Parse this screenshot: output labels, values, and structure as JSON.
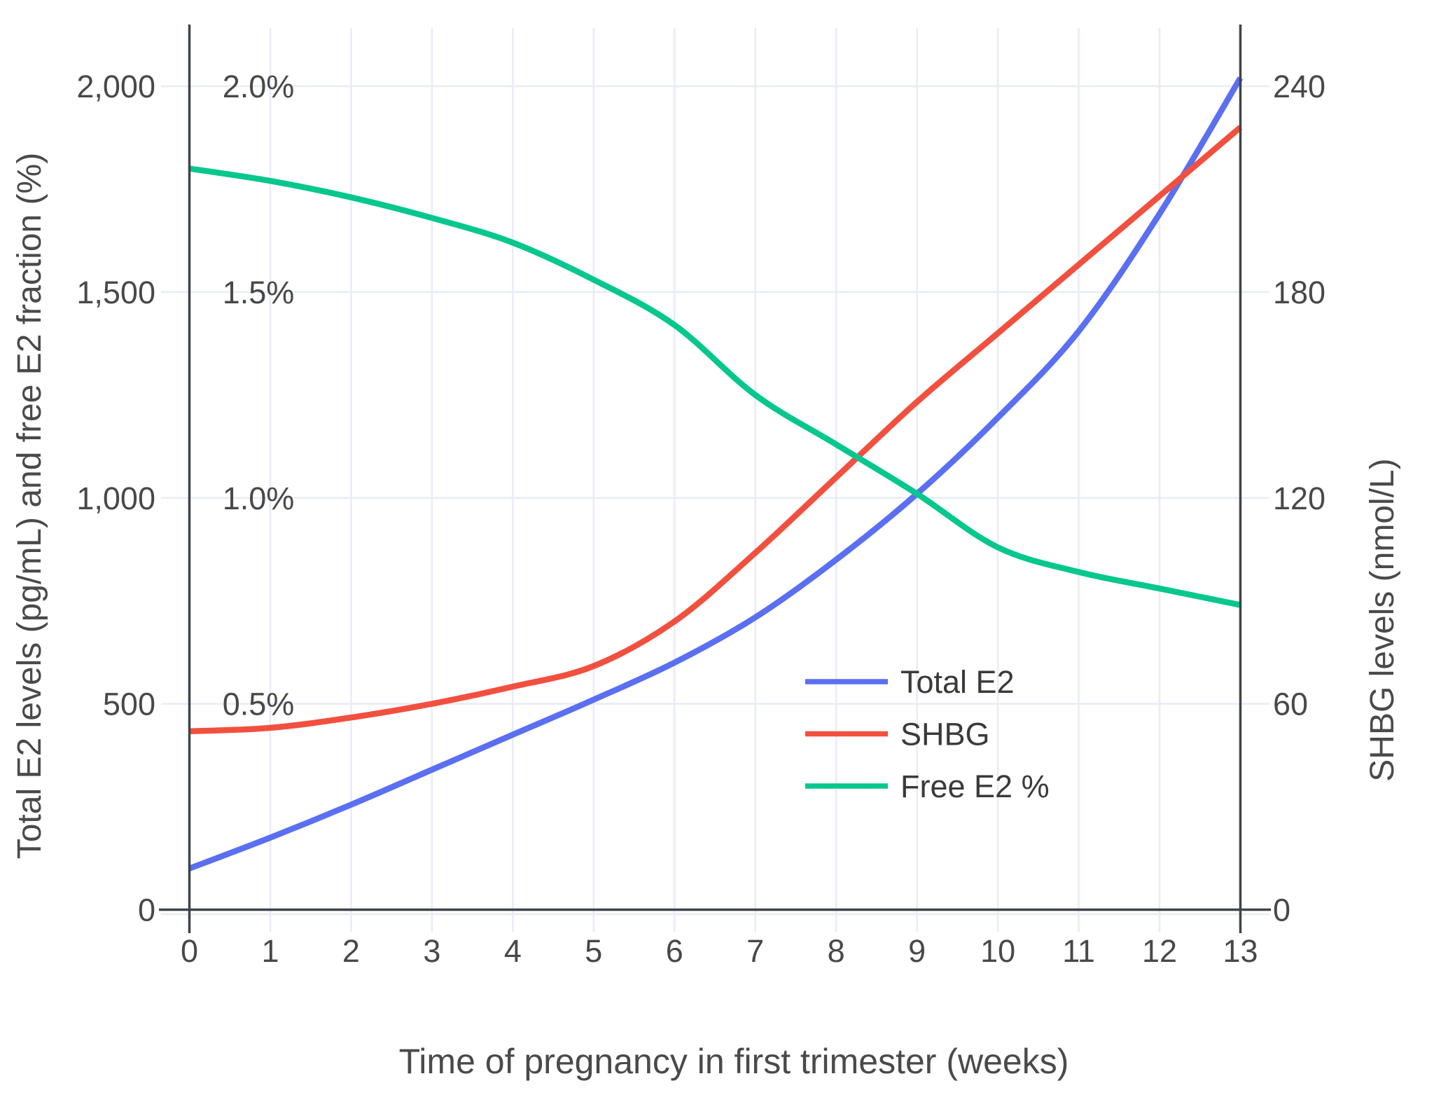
{
  "chart_data": {
    "type": "line",
    "title": "",
    "xlabel": "Time of pregnancy in first trimester (weeks)",
    "ylabel_left": "Total E2 levels (pg/mL) and free E2 fraction (%)",
    "ylabel_right": "SHBG levels (nmol/L)",
    "x": [
      0,
      1,
      2,
      3,
      4,
      5,
      6,
      7,
      8,
      9,
      10,
      11,
      12,
      13
    ],
    "x_tick_labels": [
      "0",
      "1",
      "2",
      "3",
      "4",
      "5",
      "6",
      "7",
      "8",
      "9",
      "10",
      "11",
      "12",
      "13"
    ],
    "xlim": [
      0,
      13
    ],
    "grid": true,
    "left_axis": {
      "tick_values": [
        0,
        500,
        1000,
        1500,
        2000
      ],
      "tick_labels": [
        "0",
        "500",
        "1,000",
        "1,500",
        "2,000"
      ],
      "ylim": [
        0,
        2150
      ]
    },
    "percent_axis": {
      "tick_values": [
        0.5,
        1.0,
        1.5,
        2.0
      ],
      "tick_labels": [
        "0.5%",
        "1.0%",
        "1.5%",
        "2.0%"
      ],
      "mapping": "1% equals 1000 on left axis"
    },
    "right_axis": {
      "tick_values": [
        0,
        60,
        120,
        180,
        240
      ],
      "tick_labels": [
        "0",
        "60",
        "120",
        "180",
        "240"
      ],
      "ylim": [
        0,
        258
      ]
    },
    "series": [
      {
        "name": "Total E2",
        "axis": "left",
        "units": "pg/mL",
        "color": "#5A6FF2",
        "values": [
          100,
          175,
          255,
          340,
          425,
          510,
          600,
          710,
          850,
          1010,
          1195,
          1405,
          1690,
          2020
        ]
      },
      {
        "name": "SHBG",
        "axis": "right",
        "units": "nmol/L",
        "color": "#F2503F",
        "values": [
          52,
          53,
          56,
          60,
          65,
          71,
          84,
          104,
          126,
          148,
          168,
          188,
          208,
          228
        ]
      },
      {
        "name": "Free E2 %",
        "axis": "percent",
        "units": "%",
        "color": "#07C78E",
        "values": [
          1.8,
          1.77,
          1.73,
          1.68,
          1.62,
          1.53,
          1.42,
          1.25,
          1.13,
          1.01,
          0.88,
          0.82,
          0.78,
          0.74
        ]
      }
    ],
    "legend": {
      "position": "inside right-middle",
      "items": [
        "Total E2",
        "SHBG",
        "Free E2 %"
      ]
    },
    "colors": {
      "axis_line": "#3F434A",
      "gridline": "#E8ECF6",
      "tick_text": "#484848",
      "title_text": "#4A4A4A"
    }
  }
}
